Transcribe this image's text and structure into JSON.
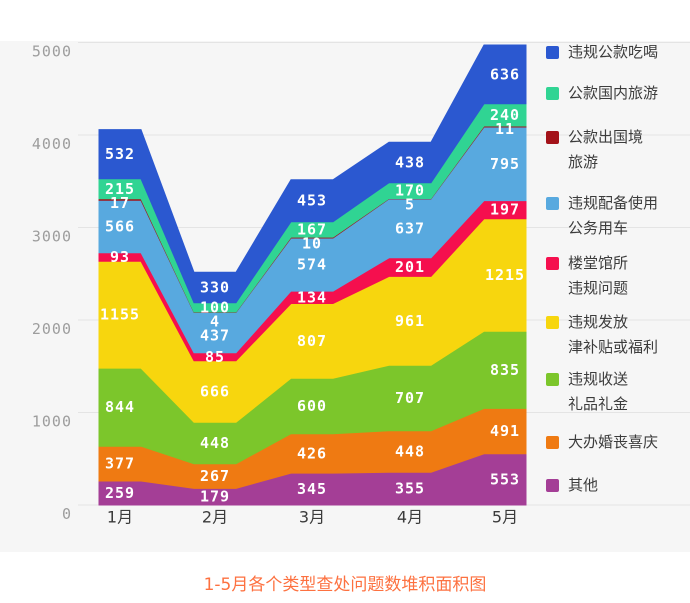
{
  "title": "1-5月各个类型查处问题数堆积面积图",
  "y_axis": {
    "ticks": [
      "0",
      "1000",
      "2000",
      "3000",
      "4000",
      "5000"
    ]
  },
  "x_axis": {
    "labels": [
      "1月",
      "2月",
      "3月",
      "4月",
      "5月"
    ]
  },
  "colors": {
    "plot_background": "#f6f6f6",
    "gridline": "#e4e4e4",
    "title": "#fd7140",
    "y_tick": "#9d9d9d",
    "x_tick": "#3b3b3b",
    "value_label": "#ffffff"
  },
  "legend": {
    "items": [
      {
        "id": "dining",
        "lines": "违规公款吃喝",
        "color": "#2b58d0"
      },
      {
        "id": "domestic-travel",
        "lines": "公款国内旅游",
        "color": "#30d493"
      },
      {
        "id": "abroad-travel",
        "lines": "公款出国境\n旅游",
        "color": "#a31219"
      },
      {
        "id": "official-cars",
        "lines": "违规配备使用\n公务用车",
        "color": "#58a9df"
      },
      {
        "id": "buildings",
        "lines": "楼堂馆所\n违规问题",
        "color": "#f50f4e"
      },
      {
        "id": "allowances",
        "lines": "违规发放\n津补贴或福利",
        "color": "#f7d60e"
      },
      {
        "id": "gifts",
        "lines": "违规收送\n礼品礼金",
        "color": "#7cc62b"
      },
      {
        "id": "weddings",
        "lines": "大办婚丧喜庆",
        "color": "#ef7a12"
      },
      {
        "id": "others",
        "lines": "其他",
        "color": "#a43e96"
      }
    ]
  },
  "chart_data": {
    "type": "area",
    "stacked": true,
    "title": "1-5月各个类型查处问题数堆积面积图",
    "categories": [
      "1月",
      "2月",
      "3月",
      "4月",
      "5月"
    ],
    "series": [
      {
        "id": "dining",
        "name": "违规公款吃喝",
        "color": "#2b58d0",
        "values": [
          532,
          330,
          453,
          438,
          636
        ]
      },
      {
        "id": "domestic-travel",
        "name": "公款国内旅游",
        "color": "#30d493",
        "values": [
          215,
          100,
          167,
          170,
          240
        ]
      },
      {
        "id": "abroad-travel",
        "name": "公款出国境旅游",
        "color": "#a31219",
        "values": [
          17,
          4,
          10,
          5,
          11
        ]
      },
      {
        "id": "official-cars",
        "name": "违规配备使用公务用车",
        "color": "#58a9df",
        "values": [
          566,
          437,
          574,
          637,
          795
        ]
      },
      {
        "id": "buildings",
        "name": "楼堂馆所违规问题",
        "color": "#f50f4e",
        "values": [
          93,
          85,
          134,
          201,
          197
        ]
      },
      {
        "id": "allowances",
        "name": "违规发放津补贴或福利",
        "color": "#f7d60e",
        "values": [
          1155,
          666,
          807,
          961,
          1215
        ]
      },
      {
        "id": "gifts",
        "name": "违规收送礼品礼金",
        "color": "#7cc62b",
        "values": [
          844,
          448,
          600,
          707,
          835
        ]
      },
      {
        "id": "weddings",
        "name": "大办婚丧喜庆",
        "color": "#ef7a12",
        "values": [
          377,
          267,
          426,
          448,
          491
        ]
      },
      {
        "id": "others",
        "name": "其他",
        "color": "#a43e96",
        "values": [
          259,
          179,
          345,
          355,
          553
        ]
      }
    ],
    "value_labels_shown": true,
    "ylim": [
      0,
      5000
    ],
    "grid": true,
    "legend_position": "right"
  }
}
